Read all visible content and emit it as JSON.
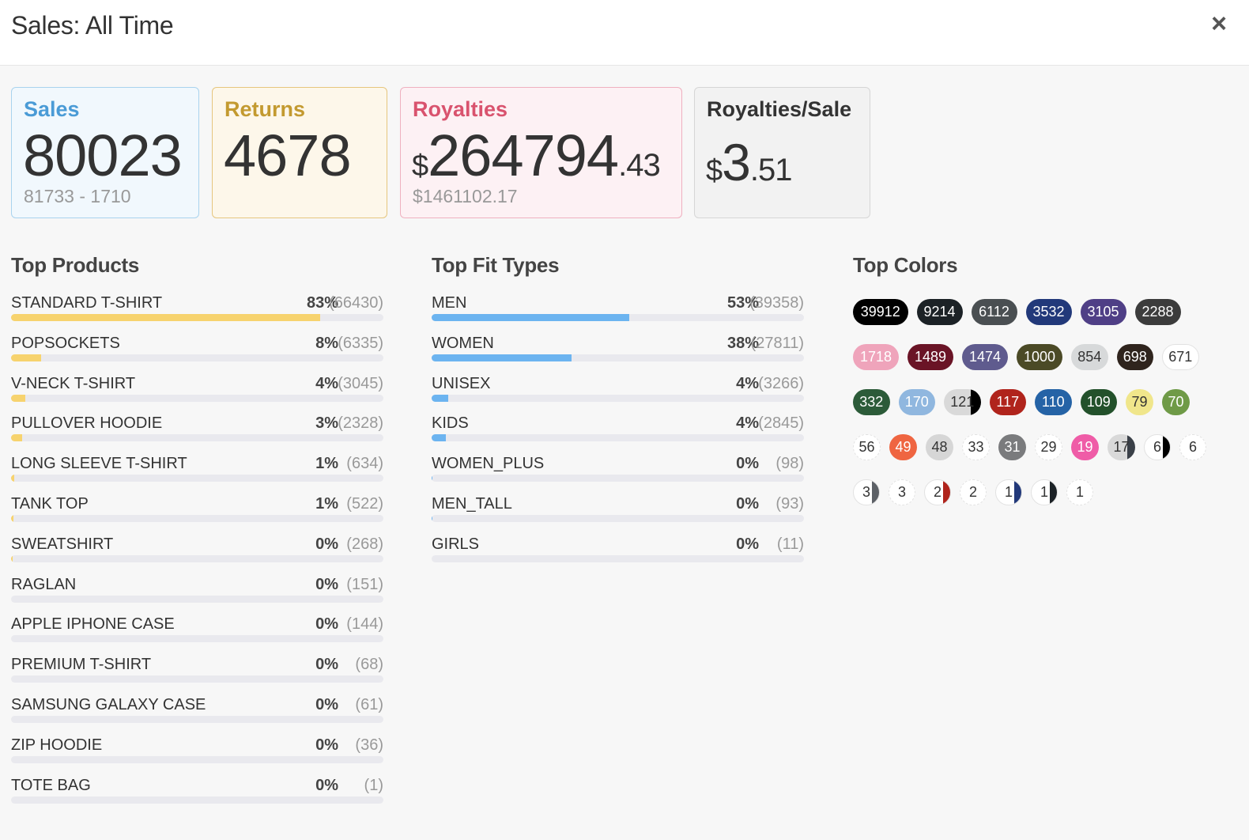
{
  "header": {
    "title": "Sales: All Time",
    "close_label": "×"
  },
  "cards": {
    "sales": {
      "label": "Sales",
      "value": "80023",
      "sub": "81733 - 1710"
    },
    "returns": {
      "label": "Returns",
      "value": "4678"
    },
    "royalties": {
      "label": "Royalties",
      "currency": "$",
      "integer": "264794",
      "decimal": ".43",
      "sub": "$1461102.17"
    },
    "royalties_per_sale": {
      "label": "Royalties/Sale",
      "currency": "$",
      "integer": "3",
      "decimal": ".51"
    }
  },
  "top_products": {
    "title": "Top Products",
    "items": [
      {
        "name": "STANDARD T-SHIRT",
        "pct": "83%",
        "count": "(66430)",
        "fill": 0.83
      },
      {
        "name": "POPSOCKETS",
        "pct": "8%",
        "count": "(6335)",
        "fill": 0.08
      },
      {
        "name": "V-NECK T-SHIRT",
        "pct": "4%",
        "count": "(3045)",
        "fill": 0.038
      },
      {
        "name": "PULLOVER HOODIE",
        "pct": "3%",
        "count": "(2328)",
        "fill": 0.029
      },
      {
        "name": "LONG SLEEVE T-SHIRT",
        "pct": "1%",
        "count": "(634)",
        "fill": 0.008
      },
      {
        "name": "TANK TOP",
        "pct": "1%",
        "count": "(522)",
        "fill": 0.0065
      },
      {
        "name": "SWEATSHIRT",
        "pct": "0%",
        "count": "(268)",
        "fill": 0.0033
      },
      {
        "name": "RAGLAN",
        "pct": "0%",
        "count": "(151)",
        "fill": 0
      },
      {
        "name": "APPLE IPHONE CASE",
        "pct": "0%",
        "count": "(144)",
        "fill": 0
      },
      {
        "name": "PREMIUM T-SHIRT",
        "pct": "0%",
        "count": "(68)",
        "fill": 0
      },
      {
        "name": "SAMSUNG GALAXY CASE",
        "pct": "0%",
        "count": "(61)",
        "fill": 0
      },
      {
        "name": "ZIP HOODIE",
        "pct": "0%",
        "count": "(36)",
        "fill": 0
      },
      {
        "name": "TOTE BAG",
        "pct": "0%",
        "count": "(1)",
        "fill": 0
      }
    ]
  },
  "top_fit_types": {
    "title": "Top Fit Types",
    "items": [
      {
        "name": "MEN",
        "pct": "53%",
        "count": "(39358)",
        "fill": 0.53
      },
      {
        "name": "WOMEN",
        "pct": "38%",
        "count": "(27811)",
        "fill": 0.375
      },
      {
        "name": "UNISEX",
        "pct": "4%",
        "count": "(3266)",
        "fill": 0.044
      },
      {
        "name": "KIDS",
        "pct": "4%",
        "count": "(2845)",
        "fill": 0.038
      },
      {
        "name": "WOMEN_PLUS",
        "pct": "0%",
        "count": "(98)",
        "fill": 0.0013
      },
      {
        "name": "MEN_TALL",
        "pct": "0%",
        "count": "(93)",
        "fill": 0.0013
      },
      {
        "name": "GIRLS",
        "pct": "0%",
        "count": "(11)",
        "fill": 0
      }
    ]
  },
  "top_colors": {
    "title": "Top Colors",
    "chips": [
      {
        "value": "39912",
        "bg": "#000000",
        "fg": "#ffffff"
      },
      {
        "value": "9214",
        "bg": "#1c2226",
        "fg": "#ffffff"
      },
      {
        "value": "6112",
        "bg": "#4a4f52",
        "fg": "#ffffff"
      },
      {
        "value": "3532",
        "bg": "#22397a",
        "fg": "#ffffff"
      },
      {
        "value": "3105",
        "bg": "#4f3f86",
        "fg": "#ffffff"
      },
      {
        "value": "2288",
        "bg": "#3c3c3c",
        "fg": "#ffffff"
      },
      {
        "value": "1718",
        "bg": "#efa4bb",
        "fg": "#ffffff"
      },
      {
        "value": "1489",
        "bg": "#6a1426",
        "fg": "#ffffff"
      },
      {
        "value": "1474",
        "bg": "#5f5b8e",
        "fg": "#ffffff"
      },
      {
        "value": "1000",
        "bg": "#4b4a26",
        "fg": "#ffffff"
      },
      {
        "value": "854",
        "bg": "#d7d9da",
        "fg": "#333333"
      },
      {
        "value": "698",
        "bg": "#2f241d",
        "fg": "#ffffff"
      },
      {
        "value": "671",
        "bg": "#ffffff",
        "fg": "#333333",
        "border": "#e2e2e2"
      },
      {
        "value": "332",
        "bg": "#2c5b39",
        "fg": "#ffffff"
      },
      {
        "value": "170",
        "bg": "#90b7df",
        "fg": "#ffffff"
      },
      {
        "value": "121",
        "bg": "#d9d9d9",
        "fg": "#333333",
        "split": "#000000"
      },
      {
        "value": "117",
        "bg": "#b0241c",
        "fg": "#ffffff"
      },
      {
        "value": "110",
        "bg": "#2563a6",
        "fg": "#ffffff"
      },
      {
        "value": "109",
        "bg": "#23512b",
        "fg": "#ffffff"
      },
      {
        "value": "79",
        "bg": "#f0e68b",
        "fg": "#333333"
      },
      {
        "value": "70",
        "bg": "#6f9a47",
        "fg": "#ffffff"
      },
      {
        "value": "56",
        "bg": "#ffffff",
        "fg": "#333333",
        "border": "#e2e2e2",
        "dashed": true
      },
      {
        "value": "49",
        "bg": "#ef6541",
        "fg": "#ffffff"
      },
      {
        "value": "48",
        "bg": "#d6d6d6",
        "fg": "#333333"
      },
      {
        "value": "33",
        "bg": "#ffffff",
        "fg": "#333333",
        "border": "#e2e2e2",
        "dashed": true
      },
      {
        "value": "31",
        "bg": "#7a7b7d",
        "fg": "#ffffff"
      },
      {
        "value": "29",
        "bg": "#ffffff",
        "fg": "#333333",
        "border": "#e2e2e2",
        "dashed": true
      },
      {
        "value": "19",
        "bg": "#ef5ca7",
        "fg": "#ffffff"
      },
      {
        "value": "17",
        "bg": "#d9d9d9",
        "fg": "#333333",
        "split": "#3a4048"
      },
      {
        "value": "6",
        "bg": "#ffffff",
        "fg": "#333333",
        "border": "#e2e2e2",
        "split": "#000000"
      },
      {
        "value": "6",
        "bg": "#ffffff",
        "fg": "#333333",
        "border": "#e2e2e2",
        "dashed": true
      },
      {
        "value": "3",
        "bg": "#ffffff",
        "fg": "#333333",
        "border": "#e2e2e2",
        "split": "#5c6066"
      },
      {
        "value": "3",
        "bg": "#ffffff",
        "fg": "#333333",
        "border": "#e2e2e2",
        "dashed": true
      },
      {
        "value": "2",
        "bg": "#ffffff",
        "fg": "#333333",
        "border": "#e2e2e2",
        "split": "#b0241c"
      },
      {
        "value": "2",
        "bg": "#ffffff",
        "fg": "#333333",
        "border": "#e2e2e2",
        "dashed": true
      },
      {
        "value": "1",
        "bg": "#ffffff",
        "fg": "#333333",
        "border": "#e2e2e2",
        "split": "#22397a"
      },
      {
        "value": "1",
        "bg": "#ffffff",
        "fg": "#333333",
        "border": "#e2e2e2",
        "split": "#1c2226"
      },
      {
        "value": "1",
        "bg": "#ffffff",
        "fg": "#333333",
        "border": "#e2e2e2",
        "dashed": true
      }
    ]
  }
}
